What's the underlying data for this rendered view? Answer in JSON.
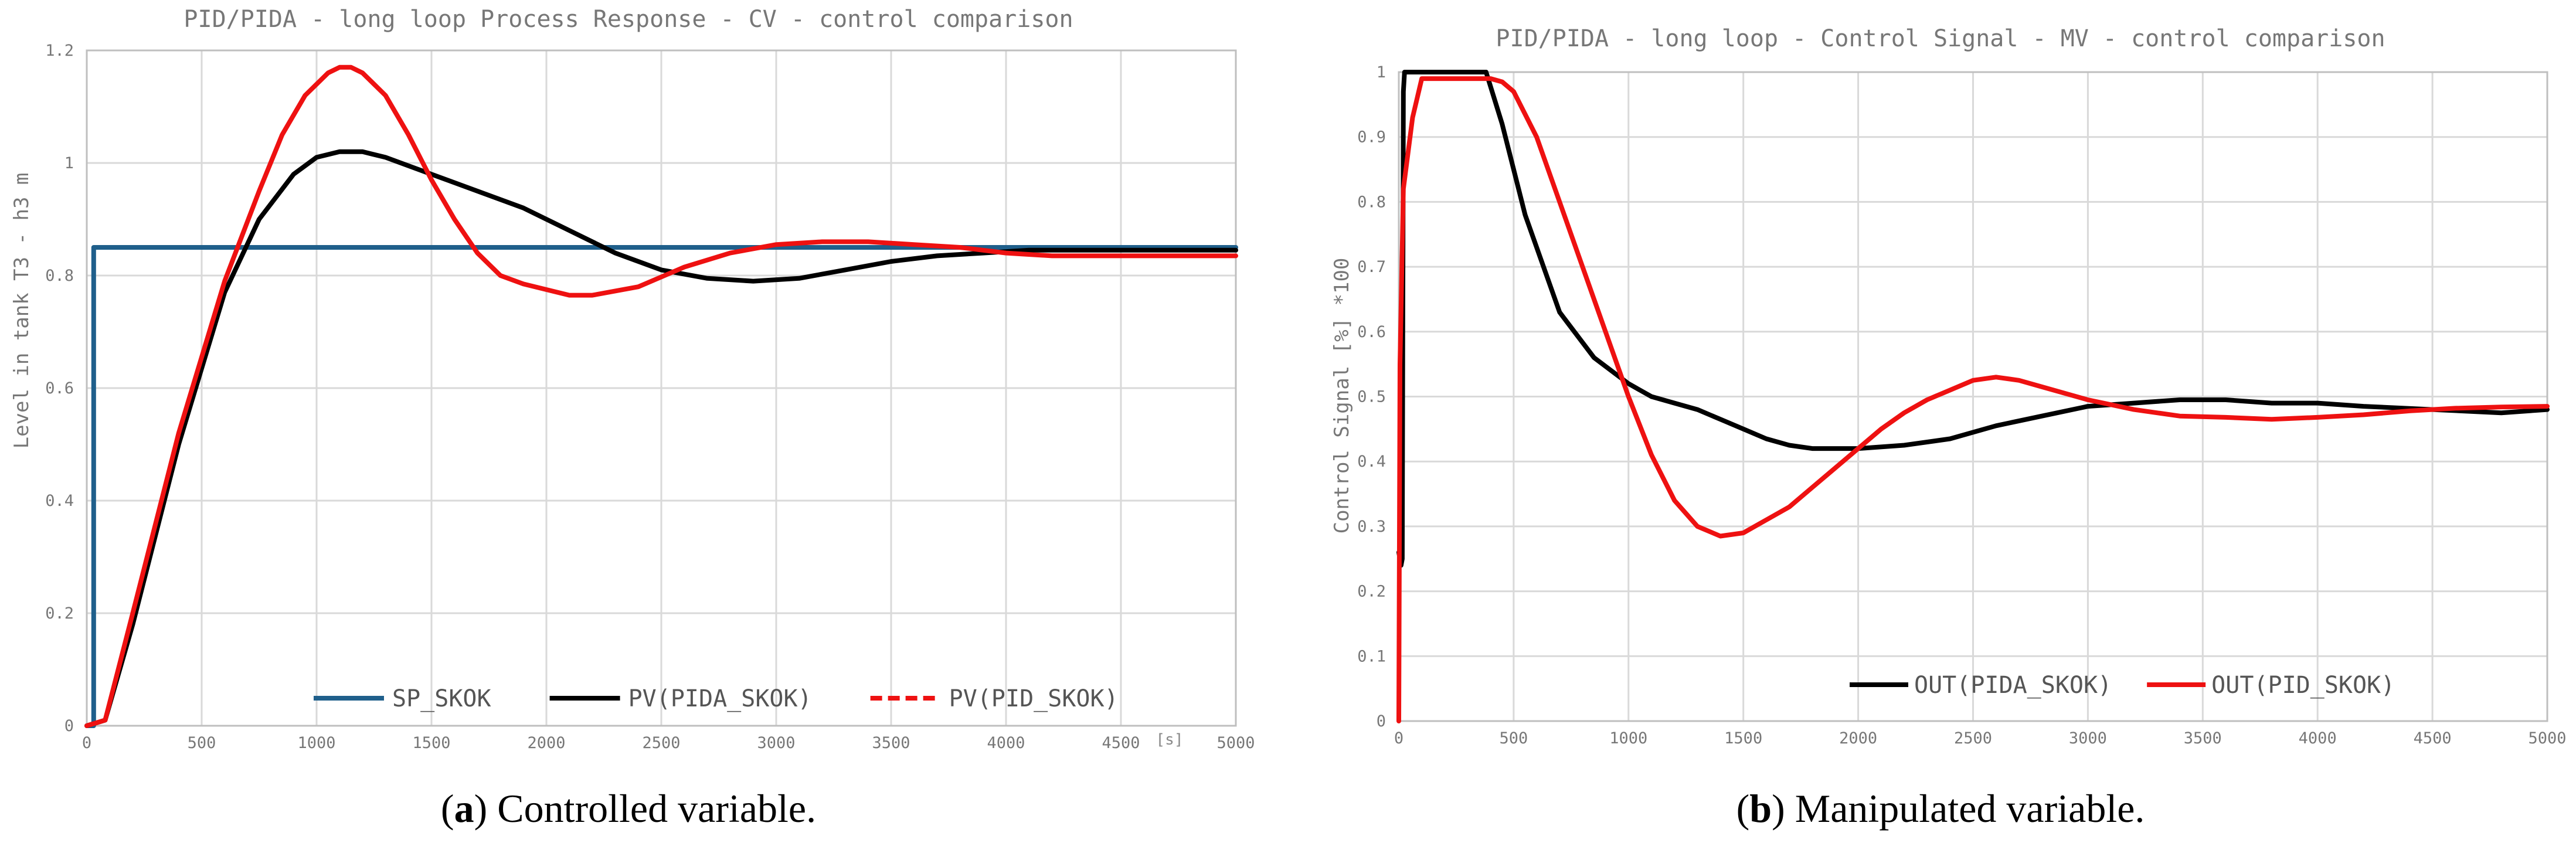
{
  "colors": {
    "sp": "#1f5f8b",
    "pida": "#000000",
    "pid": "#ee1111",
    "grid": "#d9d9d9",
    "text": "#777777"
  },
  "captions": {
    "left": {
      "letter": "a",
      "open": "(",
      "close": ")",
      "text": " Controlled variable."
    },
    "right": {
      "letter": "b",
      "open": "(",
      "close": ")",
      "text": " Manipulated variable."
    }
  },
  "chart_data": [
    {
      "type": "line",
      "title": "PID/PIDA - long loop Process Response - CV - control comparison",
      "xlabel": "",
      "x_unit": "[s]",
      "ylabel": "Level in tank T3 -  h3 m",
      "xlim": [
        0,
        5000
      ],
      "ylim": [
        0,
        1.2
      ],
      "x_ticks": [
        0,
        500,
        1000,
        1500,
        2000,
        2500,
        3000,
        3500,
        4000,
        4500,
        5000
      ],
      "y_ticks": [
        0,
        0.2,
        0.4,
        0.6,
        0.8,
        1,
        1.2
      ],
      "y_tick_labels": [
        "0",
        "0.2",
        "0.4",
        "0.6",
        "0.8",
        "1",
        "1.2"
      ],
      "grid": true,
      "legend_position": "bottom-right",
      "series": [
        {
          "name": "SP_SKOK",
          "color": "#1f5f8b",
          "style": "solid",
          "step": true,
          "x": [
            0,
            30,
            30,
            5000
          ],
          "y": [
            0,
            0,
            0.85,
            0.85
          ]
        },
        {
          "name": "PV(PIDA_SKOK)",
          "color": "#000000",
          "style": "solid",
          "x": [
            0,
            80,
            200,
            400,
            600,
            750,
            900,
            1000,
            1100,
            1200,
            1300,
            1500,
            1700,
            1900,
            2100,
            2300,
            2500,
            2700,
            2900,
            3100,
            3300,
            3500,
            3700,
            3900,
            4100,
            4300,
            4500,
            4700,
            5000
          ],
          "y": [
            0,
            0.01,
            0.18,
            0.5,
            0.77,
            0.9,
            0.98,
            1.01,
            1.02,
            1.02,
            1.01,
            0.98,
            0.95,
            0.92,
            0.88,
            0.84,
            0.81,
            0.795,
            0.79,
            0.795,
            0.81,
            0.825,
            0.835,
            0.84,
            0.845,
            0.845,
            0.845,
            0.845,
            0.845
          ]
        },
        {
          "name": "PV(PID_SKOK)",
          "color": "#ee1111",
          "style": "dashed",
          "x": [
            0,
            80,
            200,
            400,
            600,
            750,
            850,
            950,
            1050,
            1100,
            1150,
            1200,
            1300,
            1400,
            1500,
            1600,
            1700,
            1800,
            1900,
            2000,
            2100,
            2200,
            2400,
            2600,
            2800,
            3000,
            3200,
            3400,
            3600,
            3800,
            4000,
            4200,
            4400,
            4600,
            4800,
            5000
          ],
          "y": [
            0,
            0.01,
            0.2,
            0.52,
            0.79,
            0.95,
            1.05,
            1.12,
            1.16,
            1.17,
            1.17,
            1.16,
            1.12,
            1.05,
            0.97,
            0.9,
            0.84,
            0.8,
            0.785,
            0.775,
            0.765,
            0.765,
            0.78,
            0.815,
            0.84,
            0.855,
            0.86,
            0.86,
            0.855,
            0.85,
            0.84,
            0.835,
            0.835,
            0.835,
            0.835,
            0.835
          ]
        }
      ]
    },
    {
      "type": "line",
      "title": "PID/PIDA - long loop - Control Signal - MV - control comparison",
      "xlabel": "",
      "ylabel": "Control Signal [%] *100",
      "xlim": [
        0,
        5000
      ],
      "ylim": [
        0,
        1
      ],
      "x_ticks": [
        0,
        500,
        1000,
        1500,
        2000,
        2500,
        3000,
        3500,
        4000,
        4500,
        5000
      ],
      "y_ticks": [
        0,
        0.1,
        0.2,
        0.3,
        0.4,
        0.5,
        0.6,
        0.7,
        0.8,
        0.9,
        1
      ],
      "y_tick_labels": [
        "0",
        "0.1",
        "0.2",
        "0.3",
        "0.4",
        "0.5",
        "0.6",
        "0.7",
        "0.8",
        "0.9",
        "1"
      ],
      "grid": true,
      "legend_position": "bottom-right",
      "series": [
        {
          "name": "OUT(PIDA_SKOK)",
          "color": "#000000",
          "style": "solid",
          "x": [
            0,
            5,
            10,
            15,
            20,
            25,
            30,
            380,
            450,
            550,
            700,
            850,
            1000,
            1100,
            1200,
            1300,
            1400,
            1500,
            1600,
            1700,
            1800,
            1900,
            2000,
            2200,
            2400,
            2600,
            2800,
            3000,
            3200,
            3400,
            3600,
            3800,
            4000,
            4200,
            4500,
            4800,
            5000
          ],
          "y": [
            0.26,
            0.25,
            0.24,
            0.25,
            0.97,
            1,
            1,
            1,
            0.92,
            0.78,
            0.63,
            0.56,
            0.52,
            0.5,
            0.49,
            0.48,
            0.465,
            0.45,
            0.435,
            0.425,
            0.42,
            0.42,
            0.42,
            0.425,
            0.435,
            0.455,
            0.47,
            0.485,
            0.49,
            0.495,
            0.495,
            0.49,
            0.49,
            0.485,
            0.48,
            0.475,
            0.48
          ]
        },
        {
          "name": "OUT(PID_SKOK)",
          "color": "#ee1111",
          "style": "solid",
          "x": [
            0,
            5,
            20,
            60,
            100,
            400,
            450,
            500,
            600,
            700,
            800,
            900,
            1000,
            1100,
            1200,
            1300,
            1400,
            1500,
            1600,
            1700,
            1800,
            1900,
            2000,
            2100,
            2200,
            2300,
            2400,
            2500,
            2600,
            2700,
            2800,
            3000,
            3200,
            3400,
            3600,
            3800,
            4000,
            4200,
            4400,
            4600,
            4800,
            5000
          ],
          "y": [
            0,
            0.55,
            0.82,
            0.93,
            0.99,
            0.99,
            0.985,
            0.97,
            0.9,
            0.8,
            0.7,
            0.6,
            0.5,
            0.41,
            0.34,
            0.3,
            0.285,
            0.29,
            0.31,
            0.33,
            0.36,
            0.39,
            0.42,
            0.45,
            0.475,
            0.495,
            0.51,
            0.525,
            0.53,
            0.525,
            0.515,
            0.495,
            0.48,
            0.47,
            0.468,
            0.465,
            0.468,
            0.472,
            0.478,
            0.482,
            0.484,
            0.485
          ]
        }
      ]
    }
  ]
}
